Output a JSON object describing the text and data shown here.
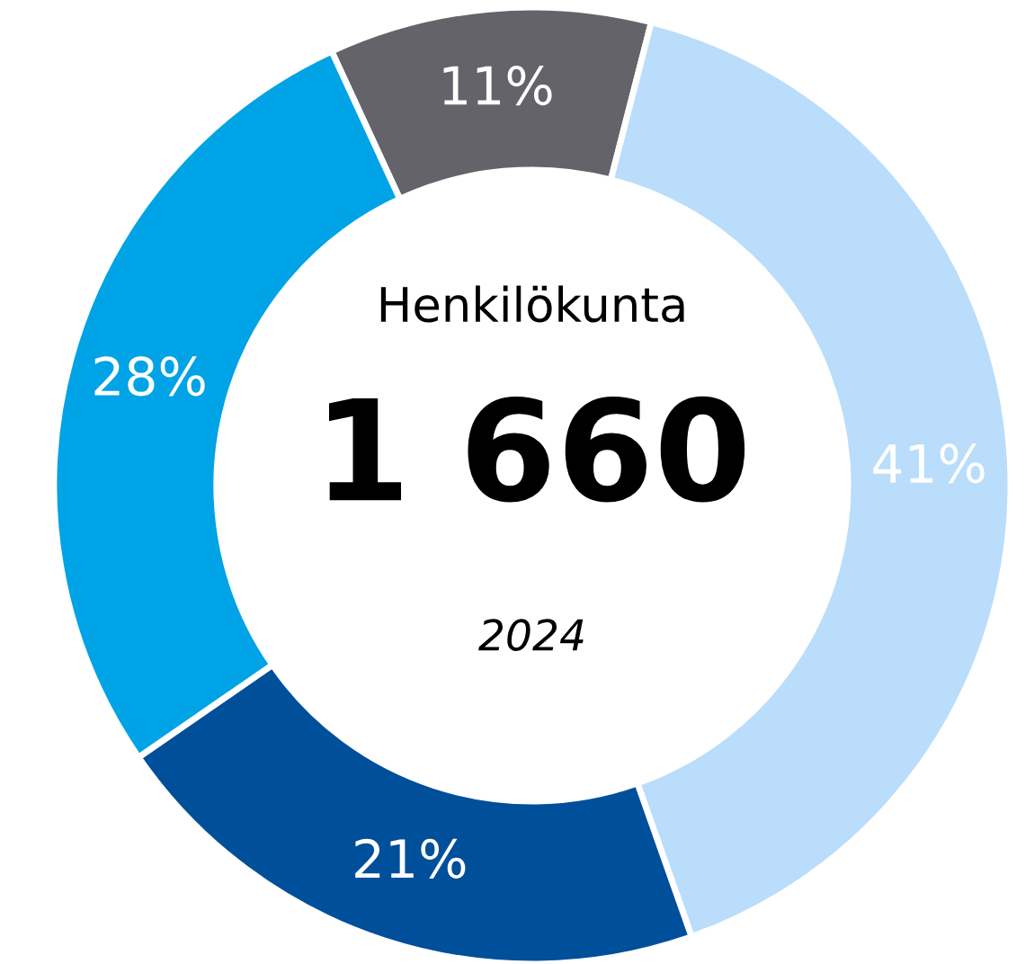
{
  "chart_data": {
    "type": "donut",
    "title": "Henkilökunta",
    "categories": [
      null,
      null,
      null,
      null
    ],
    "values": [
      11,
      41,
      21,
      28
    ],
    "colors": [
      "#636369",
      "#b9ddfb",
      "#004f9a",
      "#00a3e6"
    ],
    "value_labels": [
      "11%",
      "41%",
      "21%",
      "28%"
    ],
    "annotations": [
      "1 660",
      "2024"
    ]
  }
}
